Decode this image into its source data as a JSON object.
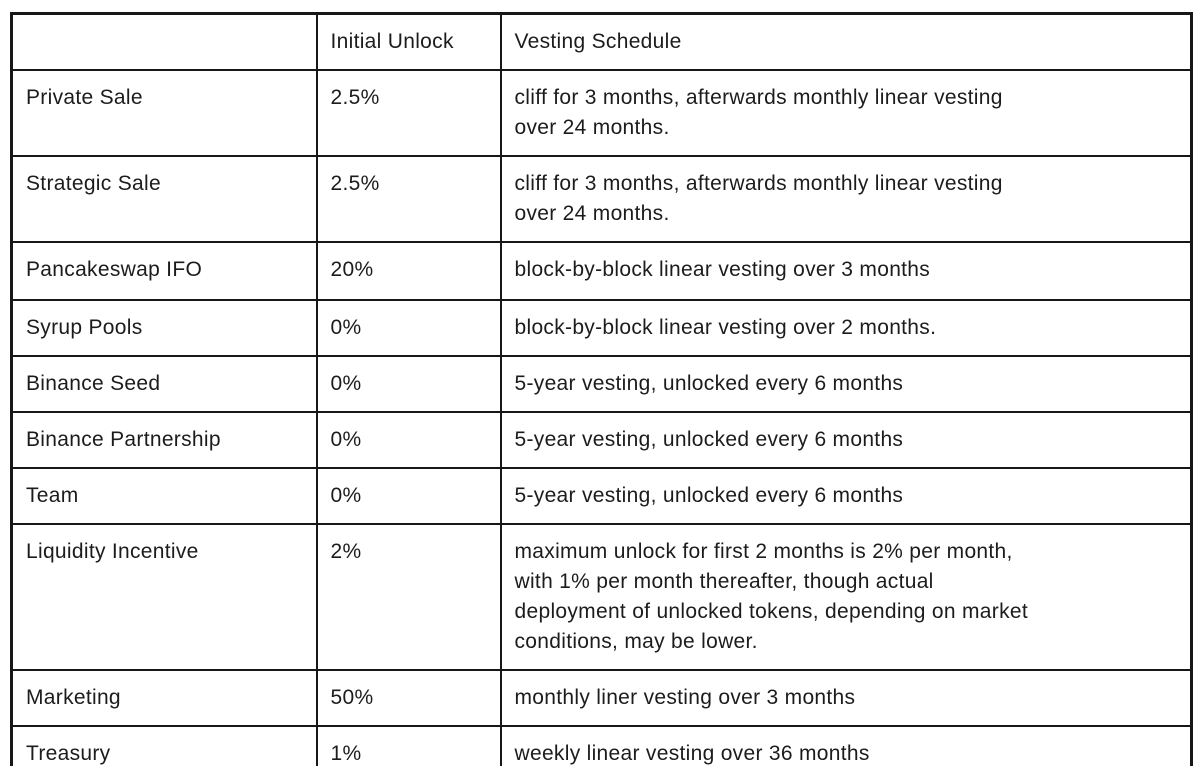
{
  "table": {
    "columns": [
      {
        "label": ""
      },
      {
        "label": "Initial Unlock"
      },
      {
        "label": "Vesting Schedule"
      }
    ],
    "row_field_order": [
      "category",
      "initial_unlock",
      "vesting_schedule"
    ],
    "rows": [
      {
        "category": "Private Sale",
        "initial_unlock": "2.5%",
        "vesting_schedule": "cliff for 3 months, afterwards monthly linear vesting\nover 24 months."
      },
      {
        "category": "Strategic Sale",
        "initial_unlock": "2.5%",
        "vesting_schedule": "cliff for 3 months, afterwards monthly linear vesting\nover 24 months."
      },
      {
        "category": "Pancakeswap IFO",
        "initial_unlock": "20%",
        "vesting_schedule": "block-by-block linear vesting over 3 months"
      },
      {
        "category": "Syrup Pools",
        "initial_unlock": "0%",
        "vesting_schedule": "block-by-block linear vesting over 2 months."
      },
      {
        "category": "Binance Seed",
        "initial_unlock": "0%",
        "vesting_schedule": "5-year vesting, unlocked every 6 months"
      },
      {
        "category": "Binance Partnership",
        "initial_unlock": "0%",
        "vesting_schedule": "5-year vesting, unlocked every 6 months"
      },
      {
        "category": "Team",
        "initial_unlock": "0%",
        "vesting_schedule": "5-year vesting, unlocked every 6 months"
      },
      {
        "category": "Liquidity Incentive",
        "initial_unlock": "2%",
        "vesting_schedule": "maximum unlock for first 2 months is 2% per month,\nwith 1% per month thereafter, though actual\ndeployment of unlocked tokens, depending on market\nconditions, may be lower."
      },
      {
        "category": "Marketing",
        "initial_unlock": "50%",
        "vesting_schedule": "monthly liner vesting over 3 months"
      },
      {
        "category": "Treasury",
        "initial_unlock": "1%",
        "vesting_schedule": "weekly linear vesting over 36 months"
      }
    ],
    "colors": {
      "border": "#171717",
      "text": "#1c1c1c",
      "background": "#ffffff"
    }
  }
}
